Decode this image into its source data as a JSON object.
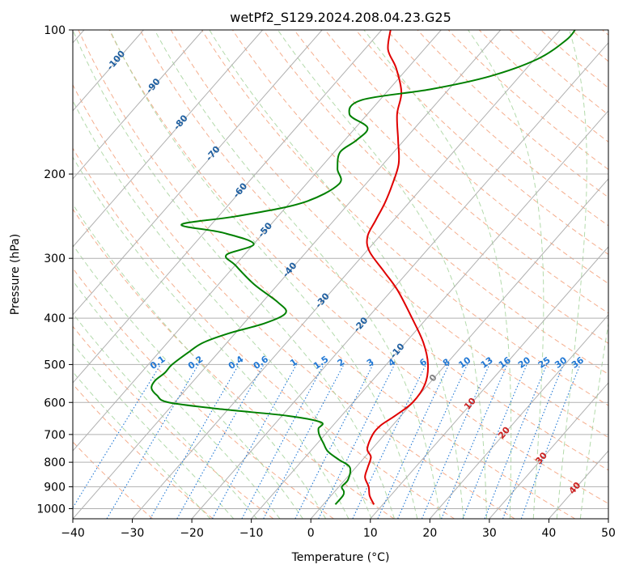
{
  "chart_data": {
    "type": "line",
    "title": "wetPf2_S129.2024.208.04.23.G25",
    "xlabel": "Temperature (°C)",
    "ylabel": "Pressure (hPa)",
    "xlim": [
      -40,
      50
    ],
    "ylim": [
      1050,
      100
    ],
    "y_scale": "log",
    "x_ticks": [
      -40,
      -30,
      -20,
      -10,
      0,
      10,
      20,
      30,
      40,
      50
    ],
    "x_tick_labels": [
      "−40",
      "−30",
      "−20",
      "−10",
      "0",
      "10",
      "20",
      "30",
      "40",
      "50"
    ],
    "y_ticks": [
      100,
      200,
      300,
      400,
      500,
      600,
      700,
      800,
      900,
      1000
    ],
    "y_tick_labels": [
      "100",
      "200",
      "300",
      "400",
      "500",
      "600",
      "700",
      "800",
      "900",
      "1000"
    ],
    "grid": true,
    "series": [
      {
        "role": "temperature",
        "color": "#e00000",
        "points": [
          {
            "p": 980,
            "t": 8.5
          },
          {
            "p": 940,
            "t": 6.5
          },
          {
            "p": 900,
            "t": 5.0
          },
          {
            "p": 860,
            "t": 3.0
          },
          {
            "p": 820,
            "t": 2.0
          },
          {
            "p": 780,
            "t": 1.0
          },
          {
            "p": 750,
            "t": -0.8
          },
          {
            "p": 700,
            "t": -2.0
          },
          {
            "p": 670,
            "t": -2.0
          },
          {
            "p": 640,
            "t": -1.0
          },
          {
            "p": 600,
            "t": 0.0
          },
          {
            "p": 550,
            "t": -0.6
          },
          {
            "p": 500,
            "t": -3.0
          },
          {
            "p": 450,
            "t": -7.0
          },
          {
            "p": 400,
            "t": -12.5
          },
          {
            "p": 350,
            "t": -19.0
          },
          {
            "p": 320,
            "t": -24.0
          },
          {
            "p": 290,
            "t": -29.5
          },
          {
            "p": 270,
            "t": -32.0
          },
          {
            "p": 250,
            "t": -33.0
          },
          {
            "p": 230,
            "t": -34.0
          },
          {
            "p": 210,
            "t": -35.5
          },
          {
            "p": 190,
            "t": -37.5
          },
          {
            "p": 170,
            "t": -41.0
          },
          {
            "p": 150,
            "t": -45.0
          },
          {
            "p": 135,
            "t": -47.5
          },
          {
            "p": 120,
            "t": -52.0
          },
          {
            "p": 110,
            "t": -56.0
          },
          {
            "p": 100,
            "t": -58.5
          }
        ]
      },
      {
        "role": "dewpoint",
        "color": "#008000",
        "points": [
          {
            "p": 980,
            "t": 2.0
          },
          {
            "p": 940,
            "t": 2.0
          },
          {
            "p": 920,
            "t": 1.5
          },
          {
            "p": 900,
            "t": 0.5
          },
          {
            "p": 870,
            "t": 0.5
          },
          {
            "p": 820,
            "t": -1.0
          },
          {
            "p": 790,
            "t": -4.0
          },
          {
            "p": 760,
            "t": -7.0
          },
          {
            "p": 730,
            "t": -9.0
          },
          {
            "p": 700,
            "t": -11.0
          },
          {
            "p": 680,
            "t": -12.0
          },
          {
            "p": 660,
            "t": -12.5
          },
          {
            "p": 640,
            "t": -19.0
          },
          {
            "p": 620,
            "t": -31.0
          },
          {
            "p": 600,
            "t": -41.0
          },
          {
            "p": 580,
            "t": -44.0
          },
          {
            "p": 560,
            "t": -46.0
          },
          {
            "p": 540,
            "t": -46.5
          },
          {
            "p": 520,
            "t": -46.0
          },
          {
            "p": 500,
            "t": -46.0
          },
          {
            "p": 470,
            "t": -45.0
          },
          {
            "p": 450,
            "t": -44.0
          },
          {
            "p": 430,
            "t": -41.0
          },
          {
            "p": 410,
            "t": -36.5
          },
          {
            "p": 390,
            "t": -34.5
          },
          {
            "p": 370,
            "t": -37.5
          },
          {
            "p": 340,
            "t": -44.0
          },
          {
            "p": 310,
            "t": -50.0
          },
          {
            "p": 295,
            "t": -53.0
          },
          {
            "p": 280,
            "t": -50.0
          },
          {
            "p": 265,
            "t": -57.0
          },
          {
            "p": 255,
            "t": -65.0
          },
          {
            "p": 245,
            "t": -57.0
          },
          {
            "p": 230,
            "t": -48.0
          },
          {
            "p": 210,
            "t": -44.5
          },
          {
            "p": 195,
            "t": -47.0
          },
          {
            "p": 180,
            "t": -49.0
          },
          {
            "p": 170,
            "t": -48.0
          },
          {
            "p": 160,
            "t": -48.0
          },
          {
            "p": 150,
            "t": -53.0
          },
          {
            "p": 140,
            "t": -53.0
          },
          {
            "p": 133,
            "t": -43.0
          },
          {
            "p": 125,
            "t": -35.0
          },
          {
            "p": 115,
            "t": -29.5
          },
          {
            "p": 105,
            "t": -27.5
          },
          {
            "p": 100,
            "t": -27.5
          }
        ]
      }
    ],
    "isotherm_labels": [
      {
        "t": -100,
        "p": 115,
        "text": "-100"
      },
      {
        "t": -90,
        "p": 130,
        "text": "-90"
      },
      {
        "t": -80,
        "p": 155,
        "text": "-80"
      },
      {
        "t": -70,
        "p": 180,
        "text": "-70"
      },
      {
        "t": -60,
        "p": 215,
        "text": "-60"
      },
      {
        "t": -50,
        "p": 260,
        "text": "-50"
      },
      {
        "t": -40,
        "p": 315,
        "text": "-40"
      },
      {
        "t": -30,
        "p": 365,
        "text": "-30"
      },
      {
        "t": -20,
        "p": 410,
        "text": "-20"
      },
      {
        "t": -10,
        "p": 465,
        "text": "-10"
      },
      {
        "t": 0,
        "p": 530,
        "text": "0"
      },
      {
        "t": 10,
        "p": 600,
        "text": "10"
      },
      {
        "t": 20,
        "p": 690,
        "text": "20"
      },
      {
        "t": 30,
        "p": 780,
        "text": "30"
      },
      {
        "t": 40,
        "p": 900,
        "text": "40"
      }
    ],
    "mixing_ratio_labels": [
      "0.1",
      "0.2",
      "0.4",
      "0.6",
      "1",
      "1.5",
      "2",
      "3",
      "4",
      "6",
      "8",
      "10",
      "13",
      "16",
      "20",
      "25",
      "30",
      "36"
    ],
    "colors": {
      "temperature": "#e00000",
      "dewpoint": "#008000",
      "grid": "#b0b0b0",
      "dry_adiabat": "#f4a582",
      "moist_adiabat": "#a6d39c",
      "mixing_ratio": "#1f77d4",
      "isotherm_label_cold": "#1f5fa0",
      "isotherm_label_zero": "#808080",
      "isotherm_label_warm": "#cc2222"
    }
  }
}
